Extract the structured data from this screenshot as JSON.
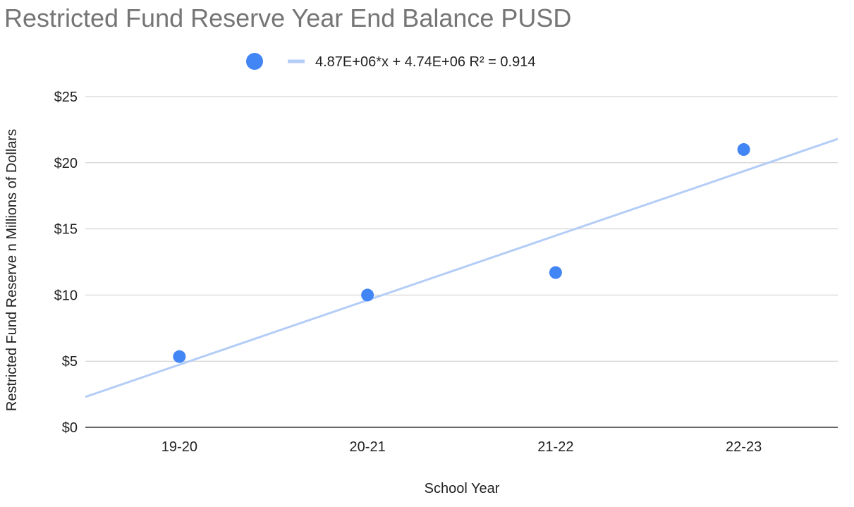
{
  "chart_data": {
    "type": "scatter",
    "title": "Restricted Fund Reserve Year End Balance PUSD",
    "xlabel": "School Year",
    "ylabel": "Restricted Fund Reserve n Millions of Dollars",
    "categories": [
      "19-20",
      "20-21",
      "21-22",
      "22-23"
    ],
    "series": [
      {
        "values": [
          5.35,
          10.0,
          11.7,
          21.0
        ],
        "color": "#4285f4"
      }
    ],
    "trendline": {
      "label": "4.87E+06*x + 4.74E+06 R² = 0.914",
      "color": "#b4cdf7",
      "start_value": 2.3,
      "end_value": 21.8
    },
    "y_ticks": [
      {
        "value": 0,
        "label": "$0"
      },
      {
        "value": 5,
        "label": "$5"
      },
      {
        "value": 10,
        "label": "$10"
      },
      {
        "value": 15,
        "label": "$15"
      },
      {
        "value": 20,
        "label": "$20"
      },
      {
        "value": 25,
        "label": "$25"
      }
    ],
    "ylim": [
      0,
      25
    ],
    "grid": true,
    "legend_position": "top-center"
  }
}
